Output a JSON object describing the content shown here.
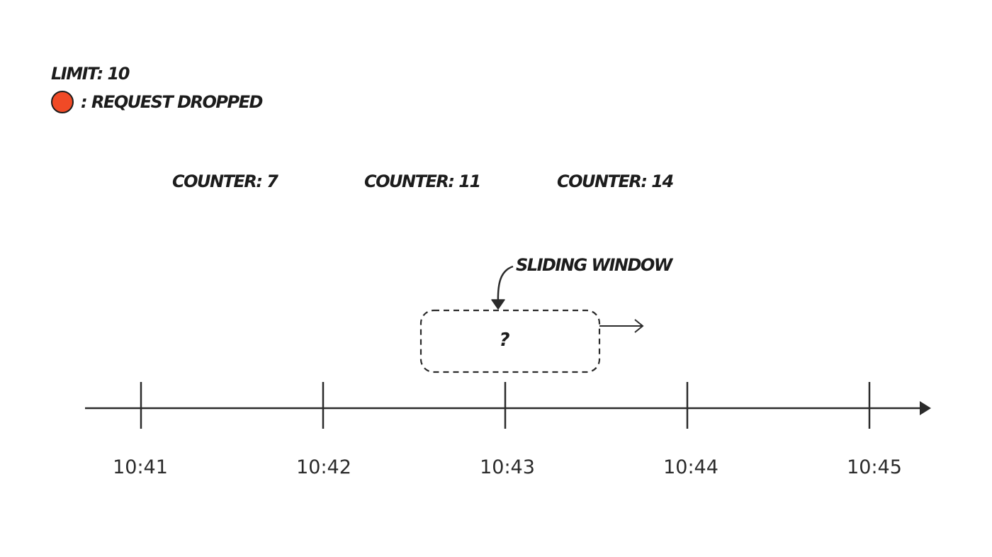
{
  "legend": {
    "limit_label": "LIMIT: 10",
    "dropped_label": ": REQUEST DROPPED",
    "dropped_color": "#f04a26"
  },
  "counters": [
    "COUNTER: 7",
    "COUNTER: 11",
    "COUNTER: 14"
  ],
  "window": {
    "label": "SLIDING WINDOW",
    "content": "?"
  },
  "timeline": {
    "ticks": [
      "10:41",
      "10:42",
      "10:43",
      "10:44",
      "10:45"
    ]
  },
  "colors": {
    "stroke": "#2b2b2b",
    "text": "#1c1c1c"
  }
}
